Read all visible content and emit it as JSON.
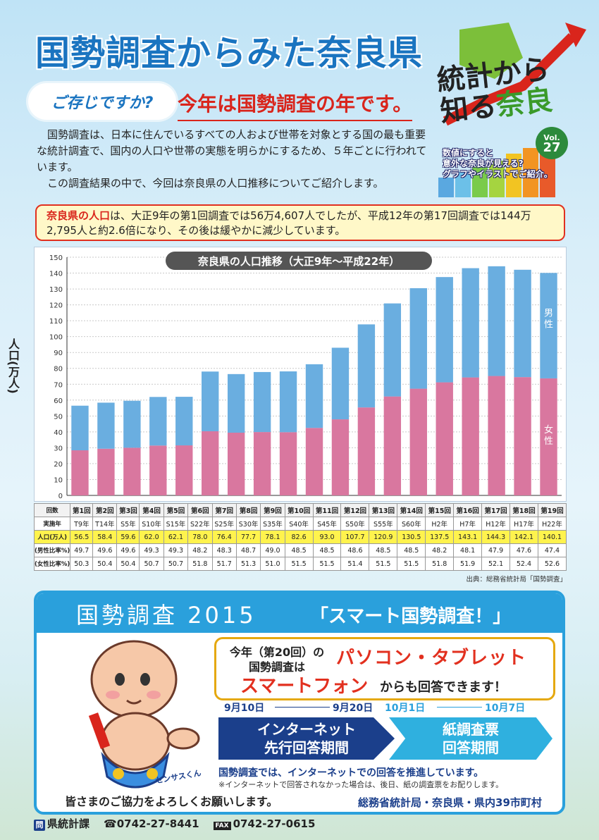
{
  "header": {
    "title": "国勢調査からみた奈良県",
    "tagline": "ご存じですか?",
    "subtitle": "今年は国勢調査の年です。"
  },
  "logo": {
    "line1": "統計から",
    "line2a": "知る",
    "line2b": "奈良",
    "vol_label": "Vol.",
    "vol_number": "27",
    "desc1": "数値にすると",
    "desc2": "意外な奈良が見える?",
    "desc3": "グラフやイラストでご紹介。"
  },
  "intro": {
    "p1": "国勢調査は、日本に住んでいるすべての人および世帯を対象とする国の最も重要な統計調査で、国内の人口や世帯の実態を明らかにするため、５年ごとに行われています。",
    "p2": "この調査結果の中で、今回は奈良県の人口推移についてご紹介します。"
  },
  "notice": {
    "lead": "奈良県の人口",
    "text": "は、大正9年の第1回調査では56万4,607人でしたが、平成12年の第17回調査では144万2,795人と約2.6倍になり、その後は緩やかに減少しています。"
  },
  "chart_data": {
    "type": "bar",
    "title": "奈良県の人口推移（大正9年～平成22年）",
    "ylabel": "人口(万人)",
    "ylim": [
      0,
      150
    ],
    "yticks": [
      0,
      10,
      20,
      30,
      40,
      50,
      60,
      70,
      80,
      90,
      100,
      110,
      120,
      130,
      140,
      150
    ],
    "categories": [
      "T9年",
      "T14年",
      "S5年",
      "S10年",
      "S15年",
      "S22年",
      "S25年",
      "S30年",
      "S35年",
      "S40年",
      "S45年",
      "S50年",
      "S55年",
      "S60年",
      "H2年",
      "H7年",
      "H12年",
      "H17年",
      "H22年"
    ],
    "series": [
      {
        "name": "女性",
        "color": "#d9779f",
        "values": [
          28.4,
          29.4,
          30.0,
          31.4,
          31.5,
          40.4,
          39.5,
          39.9,
          39.8,
          42.5,
          47.9,
          55.4,
          62.3,
          67.2,
          71.2,
          74.3,
          75.2,
          74.5,
          73.7
        ]
      },
      {
        "name": "男性",
        "color": "#6aaee0",
        "values": [
          28.1,
          29.0,
          29.6,
          30.6,
          30.6,
          37.6,
          36.9,
          37.8,
          38.3,
          40.1,
          45.1,
          52.3,
          58.6,
          63.3,
          66.3,
          68.8,
          69.1,
          67.6,
          66.4
        ]
      }
    ],
    "totals": [
      56.5,
      58.4,
      59.6,
      62.0,
      62.1,
      78.0,
      76.4,
      77.7,
      78.1,
      82.6,
      93.0,
      107.7,
      120.9,
      130.5,
      137.5,
      143.1,
      144.3,
      142.1,
      140.1
    ]
  },
  "table": {
    "row_labels": [
      "回数",
      "実施年",
      "人口(万人)",
      "(男性比率%)",
      "(女性比率%)"
    ],
    "rounds": [
      "第1回",
      "第2回",
      "第3回",
      "第4回",
      "第5回",
      "第6回",
      "第7回",
      "第8回",
      "第9回",
      "第10回",
      "第11回",
      "第12回",
      "第13回",
      "第14回",
      "第15回",
      "第16回",
      "第17回",
      "第18回",
      "第19回"
    ],
    "years": [
      "T9年",
      "T14年",
      "S5年",
      "S10年",
      "S15年",
      "S22年",
      "S25年",
      "S30年",
      "S35年",
      "S40年",
      "S45年",
      "S50年",
      "S55年",
      "S60年",
      "H2年",
      "H7年",
      "H12年",
      "H17年",
      "H22年"
    ],
    "population": [
      "56.5",
      "58.4",
      "59.6",
      "62.0",
      "62.1",
      "78.0",
      "76.4",
      "77.7",
      "78.1",
      "82.6",
      "93.0",
      "107.7",
      "120.9",
      "130.5",
      "137.5",
      "143.1",
      "144.3",
      "142.1",
      "140.1"
    ],
    "male_ratio": [
      "49.7",
      "49.6",
      "49.6",
      "49.3",
      "49.3",
      "48.2",
      "48.3",
      "48.7",
      "49.0",
      "48.5",
      "48.5",
      "48.6",
      "48.5",
      "48.5",
      "48.2",
      "48.1",
      "47.9",
      "47.6",
      "47.4"
    ],
    "female_ratio": [
      "50.3",
      "50.4",
      "50.4",
      "50.7",
      "50.7",
      "51.8",
      "51.7",
      "51.3",
      "51.0",
      "51.5",
      "51.5",
      "51.4",
      "51.5",
      "51.5",
      "51.8",
      "51.9",
      "52.1",
      "52.4",
      "52.6"
    ],
    "source": "出典：総務省統計局「国勢調査」"
  },
  "panel": {
    "census_label": "国勢調査 2015",
    "smart_label": "「スマート国勢調査！」",
    "bubble_small": "今年（第20回）の国勢調査は",
    "bubble_big1": "パソコン・タブレット",
    "bubble_big2": "スマートフォン",
    "bubble_suffix": "からも回答できます！",
    "date1": "9月10日",
    "date2": "9月20日",
    "date3": "10月1日",
    "date4": "10月7日",
    "period1_line1": "インターネット",
    "period1_line2": "先行回答期間",
    "period2_line1": "紙調査票",
    "period2_line2": "回答期間",
    "promote": "国勢調査では、インターネットでの回答を推進しています。",
    "promote_note": "※インターネットで回答されなかった場合は、後日、紙の調査票をお配りします。",
    "mascot_name": "センサスくん",
    "thanks": "皆さまのご協力をよろしくお願いします。",
    "org": "総務省統計局・奈良県・県内39市町村"
  },
  "footer": {
    "contact_badge": "問",
    "dept": "県統計課",
    "tel": "☎0742-27-8441",
    "fax_label": "FAX",
    "fax": "0742-27-0615"
  }
}
